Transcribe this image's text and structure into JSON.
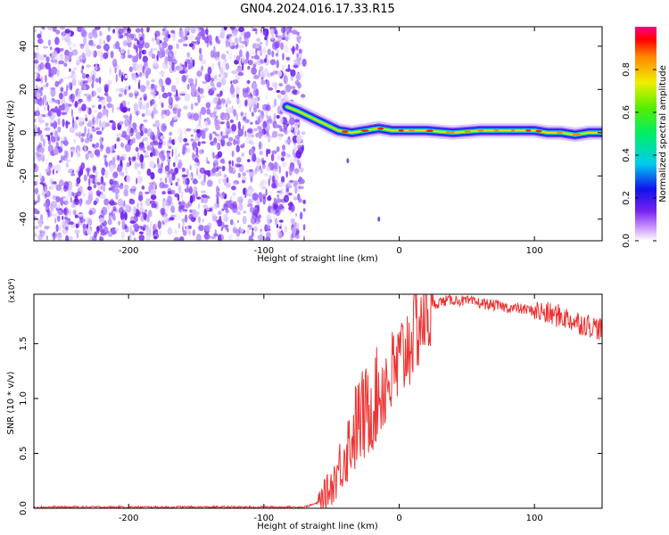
{
  "title": "GN04.2024.016.17.33.R15",
  "chart_data": [
    {
      "type": "heatmap",
      "xlabel": "Height of straight line (km)",
      "ylabel": "Frequency (Hz)",
      "xlim": [
        -270,
        150
      ],
      "ylim": [
        -50,
        49
      ],
      "xticks": [
        "-200",
        "-100",
        "0",
        "100"
      ],
      "yticks": [
        "-40",
        "-20",
        "0",
        "20",
        "40"
      ],
      "colorbar": {
        "label": "Normalized spectral amplitude",
        "range": [
          0.0,
          1.0
        ],
        "ticks": [
          "0.0",
          "0.2",
          "0.4",
          "0.6",
          "0.8"
        ]
      },
      "noise_region_x": [
        -270,
        -70
      ],
      "signal_track": {
        "x": [
          -83,
          -75,
          -65,
          -55,
          -45,
          -35,
          -25,
          -15,
          -5,
          5,
          20,
          40,
          60,
          80,
          100,
          110,
          120,
          130,
          140,
          150
        ],
        "y": [
          12,
          10,
          7,
          4,
          1,
          0,
          1,
          2,
          1,
          1,
          1,
          0,
          1,
          1,
          1,
          0,
          0,
          -1,
          0,
          0
        ]
      }
    },
    {
      "type": "line",
      "xlabel": "Height of straight line (km)",
      "ylabel": "SNR (10 * v/v)",
      "y_multiplier": "(x10⁴)",
      "xlim": [
        -270,
        150
      ],
      "ylim": [
        0,
        1.95
      ],
      "xticks": [
        "-200",
        "-100",
        "0",
        "100"
      ],
      "yticks": [
        "0.0",
        "0.5",
        "1.0",
        "1.5"
      ],
      "series": [
        {
          "color": "#ee3333",
          "x": [
            -270,
            -150,
            -100,
            -70,
            -60,
            -50,
            -45,
            -40,
            -35,
            -30,
            -25,
            -20,
            -15,
            -10,
            -5,
            0,
            5,
            10,
            15,
            20,
            25,
            30,
            40,
            60,
            80,
            100,
            110,
            120,
            130,
            140,
            150
          ],
          "y": [
            0.01,
            0.01,
            0.01,
            0.01,
            0.05,
            0.2,
            0.35,
            0.5,
            0.65,
            0.8,
            0.85,
            0.95,
            1.05,
            1.15,
            1.2,
            1.3,
            1.45,
            1.6,
            1.7,
            1.78,
            1.85,
            1.88,
            1.9,
            1.87,
            1.83,
            1.8,
            1.77,
            1.75,
            1.7,
            1.67,
            1.63
          ]
        }
      ]
    }
  ]
}
